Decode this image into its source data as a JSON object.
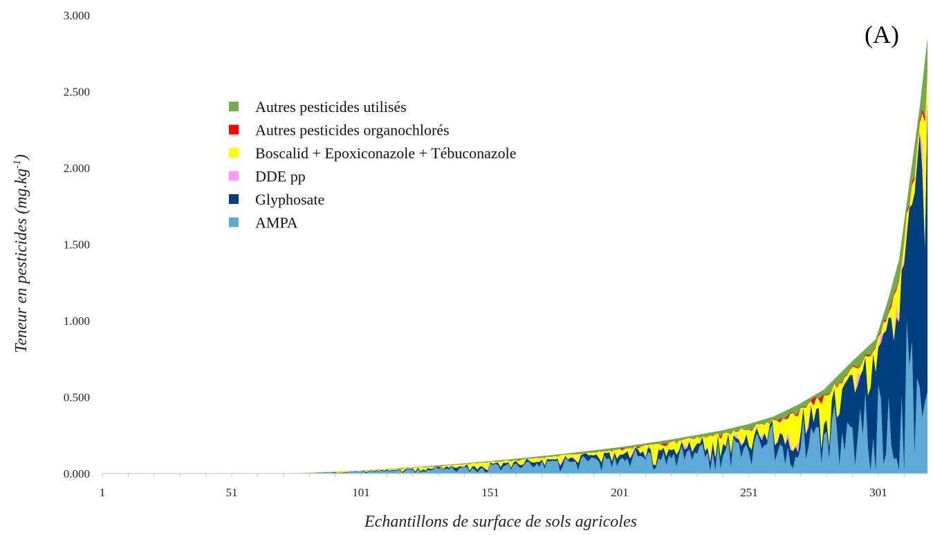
{
  "chart_data": {
    "type": "area",
    "stacked": true,
    "panel_label": "(A)",
    "xlabel": "Echantillons de surface de sols agricoles",
    "ylabel": "Teneur en pesticides (mg.kg-1)",
    "ylabel_main": "Teneur en pesticides (mg.kg",
    "ylabel_sup": "-1",
    "ylabel_end": ")",
    "xlim": [
      1,
      320
    ],
    "ylim": [
      0,
      3.0
    ],
    "x_ticks": [
      {
        "value": 1,
        "label": "1"
      },
      {
        "value": 51,
        "label": "51"
      },
      {
        "value": 101,
        "label": "101"
      },
      {
        "value": 151,
        "label": "151"
      },
      {
        "value": 201,
        "label": "201"
      },
      {
        "value": 251,
        "label": "251"
      },
      {
        "value": 301,
        "label": "301"
      }
    ],
    "y_ticks": [
      {
        "value": 0,
        "label": "0.000"
      },
      {
        "value": 0.5,
        "label": "0.500"
      },
      {
        "value": 1.0,
        "label": "1.000"
      },
      {
        "value": 1.5,
        "label": "1.500"
      },
      {
        "value": 2.0,
        "label": "2.000"
      },
      {
        "value": 2.5,
        "label": "2.500"
      },
      {
        "value": 3.0,
        "label": "3.000"
      }
    ],
    "grid": false,
    "legend_position": "upper-left",
    "series": [
      {
        "name": "Autres pesticides utilisés",
        "color": "#70ad47"
      },
      {
        "name": "Autres pesticides organochlorés",
        "color": "#ff0000"
      },
      {
        "name": "Boscalid + Epoxiconazole + Tébuconazole",
        "color": "#ffff00"
      },
      {
        "name": "DDE pp",
        "color": "#ff99ff"
      },
      {
        "name": "Glyphosate",
        "color": "#003f7f"
      },
      {
        "name": "AMPA",
        "color": "#5eaad6"
      }
    ],
    "total_envelope": [
      [
        1,
        0
      ],
      [
        70,
        0
      ],
      [
        80,
        0.005
      ],
      [
        101,
        0.02
      ],
      [
        120,
        0.04
      ],
      [
        140,
        0.065
      ],
      [
        160,
        0.095
      ],
      [
        180,
        0.13
      ],
      [
        200,
        0.17
      ],
      [
        220,
        0.22
      ],
      [
        240,
        0.28
      ],
      [
        250,
        0.32
      ],
      [
        260,
        0.37
      ],
      [
        270,
        0.45
      ],
      [
        280,
        0.55
      ],
      [
        290,
        0.72
      ],
      [
        300,
        0.88
      ],
      [
        305,
        1.15
      ],
      [
        309,
        1.4
      ],
      [
        313,
        1.9
      ],
      [
        317,
        2.4
      ],
      [
        320,
        2.85
      ]
    ]
  }
}
